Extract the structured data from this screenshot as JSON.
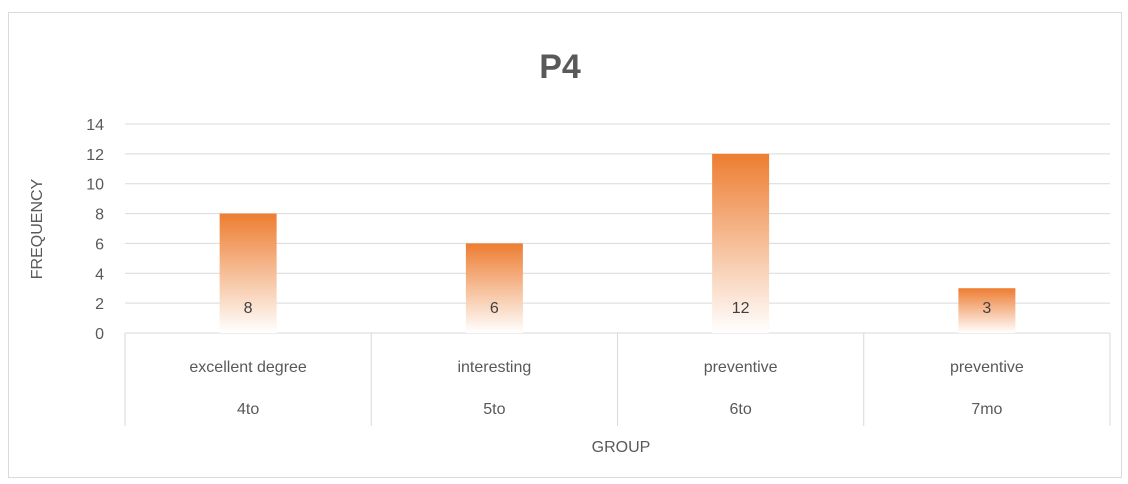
{
  "chart_data": {
    "type": "bar",
    "title": "P4",
    "xlabel": "GROUP",
    "ylabel": "FREQUENCY",
    "ylim": [
      0,
      14
    ],
    "yticks": [
      0,
      2,
      4,
      6,
      8,
      10,
      12,
      14
    ],
    "categories": [
      {
        "name": "excellent degree",
        "group": "4to"
      },
      {
        "name": "interesting",
        "group": "5to"
      },
      {
        "name": "preventive",
        "group": "6to"
      },
      {
        "name": "preventive",
        "group": "7mo"
      }
    ],
    "values": [
      8,
      6,
      12,
      3
    ],
    "data_labels": [
      "8",
      "6",
      "12",
      "3"
    ],
    "bar_color_top": "#ed7d31",
    "bar_color_bottom": "#ffffff",
    "grid": true,
    "legend": "none"
  }
}
